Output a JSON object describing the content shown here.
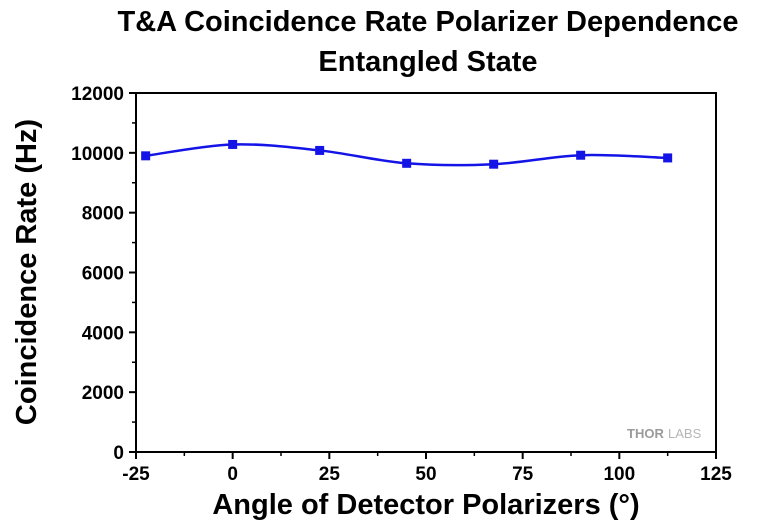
{
  "chart_data": {
    "type": "scatter",
    "title": "T&A Coincidence Rate Polarizer Dependence",
    "subtitle": "Entangled State",
    "xlabel": "Angle of Detector Polarizers (°)",
    "ylabel": "Coincidence Rate (Hz)",
    "xlim": [
      -25,
      125
    ],
    "ylim": [
      0,
      12000
    ],
    "x_ticks": [
      "-25",
      "0",
      "25",
      "50",
      "75",
      "100",
      "125"
    ],
    "y_ticks": [
      "0",
      "2000",
      "4000",
      "6000",
      "8000",
      "10000",
      "12000"
    ],
    "grid": false,
    "legend": "none",
    "series": [
      {
        "marker_color": "#1414e6",
        "line_color": "#1414e6",
        "marker": "square",
        "fit_curve": "smooth",
        "x": [
          -22.5,
          0,
          22.5,
          45,
          67.5,
          90,
          112.5
        ],
        "y": [
          9900,
          10280,
          10080,
          9650,
          9620,
          9920,
          9830
        ]
      }
    ]
  },
  "watermark": {
    "brand_left": "THOR",
    "brand_right": "LABS"
  }
}
